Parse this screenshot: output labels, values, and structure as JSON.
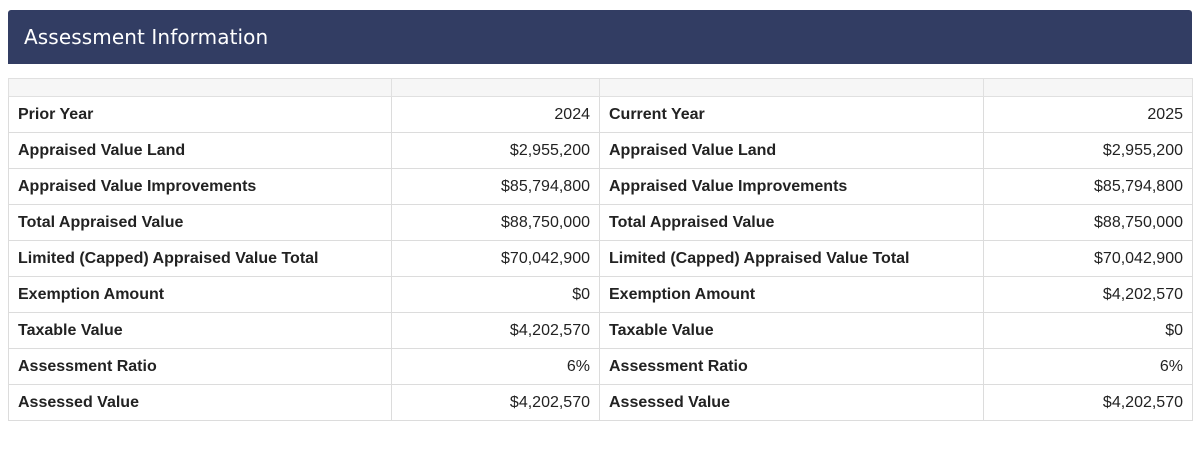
{
  "header": {
    "title": "Assessment Information"
  },
  "prior": {
    "label": "Prior Year",
    "year": "2024"
  },
  "current": {
    "label": "Current Year",
    "year": "2025"
  },
  "rows": [
    {
      "label": "Appraised Value Land",
      "prior": "$2,955,200",
      "current": "$2,955,200"
    },
    {
      "label": "Appraised Value Improvements",
      "prior": "$85,794,800",
      "current": "$85,794,800"
    },
    {
      "label": "Total Appraised Value",
      "prior": "$88,750,000",
      "current": "$88,750,000"
    },
    {
      "label": "Limited (Capped) Appraised Value Total",
      "prior": "$70,042,900",
      "current": "$70,042,900"
    },
    {
      "label": "Exemption Amount",
      "prior": "$0",
      "current": "$4,202,570"
    },
    {
      "label": "Taxable Value",
      "prior": "$4,202,570",
      "current": "$0"
    },
    {
      "label": "Assessment Ratio",
      "prior": "6%",
      "current": "6%"
    },
    {
      "label": "Assessed Value",
      "prior": "$4,202,570",
      "current": "$4,202,570"
    }
  ],
  "colors": {
    "header_bg": "#323d63",
    "header_text": "#ffffff",
    "border": "#dcdcdc"
  }
}
